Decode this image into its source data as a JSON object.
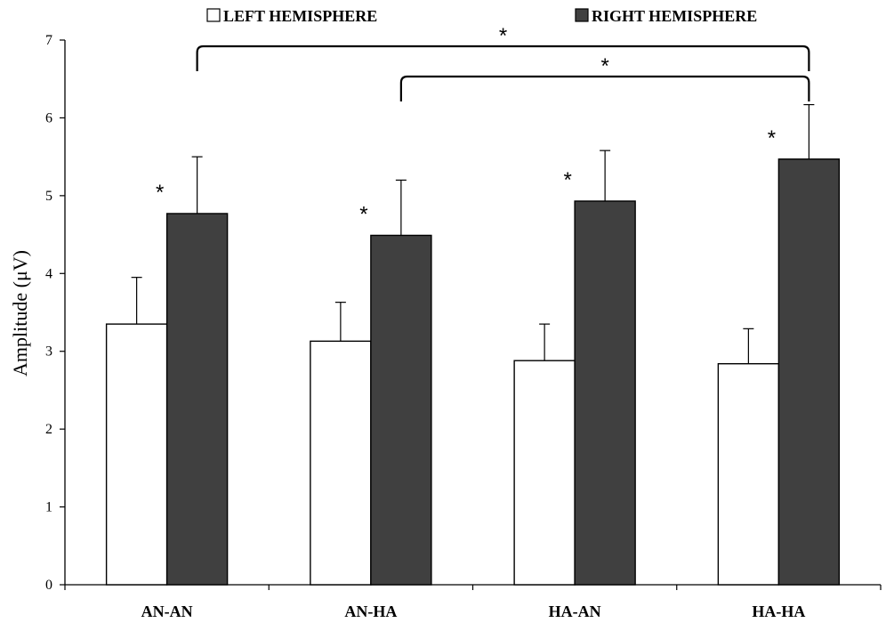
{
  "chart_data": {
    "type": "bar",
    "categories": [
      "AN-AN",
      "AN-HA",
      "HA-AN",
      "HA-HA"
    ],
    "series": [
      {
        "name": "LEFT HEMISPHERE",
        "values": [
          3.35,
          3.13,
          2.88,
          2.84
        ],
        "errors": [
          0.6,
          0.5,
          0.47,
          0.45
        ],
        "color": "#ffffff"
      },
      {
        "name": "RIGHT HEMISPHERE",
        "values": [
          4.77,
          4.49,
          4.93,
          5.47
        ],
        "errors": [
          0.73,
          0.71,
          0.65,
          0.7
        ],
        "color": "#404040"
      }
    ],
    "ylabel": "Amplitude (μV)",
    "xlabel": "",
    "ylim": [
      0,
      7
    ],
    "yticks": [
      "0",
      "1",
      "2",
      "3",
      "4",
      "5",
      "6",
      "7"
    ],
    "legend_position": "top",
    "grid": false,
    "significance_marks": [
      {
        "label": "*",
        "category": "AN-AN",
        "series": "RIGHT HEMISPHERE"
      },
      {
        "label": "*",
        "category": "AN-HA",
        "series": "RIGHT HEMISPHERE"
      },
      {
        "label": "*",
        "category": "HA-AN",
        "series": "RIGHT HEMISPHERE"
      },
      {
        "label": "*",
        "category": "HA-HA",
        "series": "RIGHT HEMISPHERE"
      }
    ],
    "comparison_brackets": [
      {
        "label": "*",
        "from": "AN-AN",
        "to": "HA-HA",
        "series": "RIGHT HEMISPHERE"
      },
      {
        "label": "*",
        "from": "AN-HA",
        "to": "HA-HA",
        "series": "RIGHT HEMISPHERE"
      }
    ]
  }
}
